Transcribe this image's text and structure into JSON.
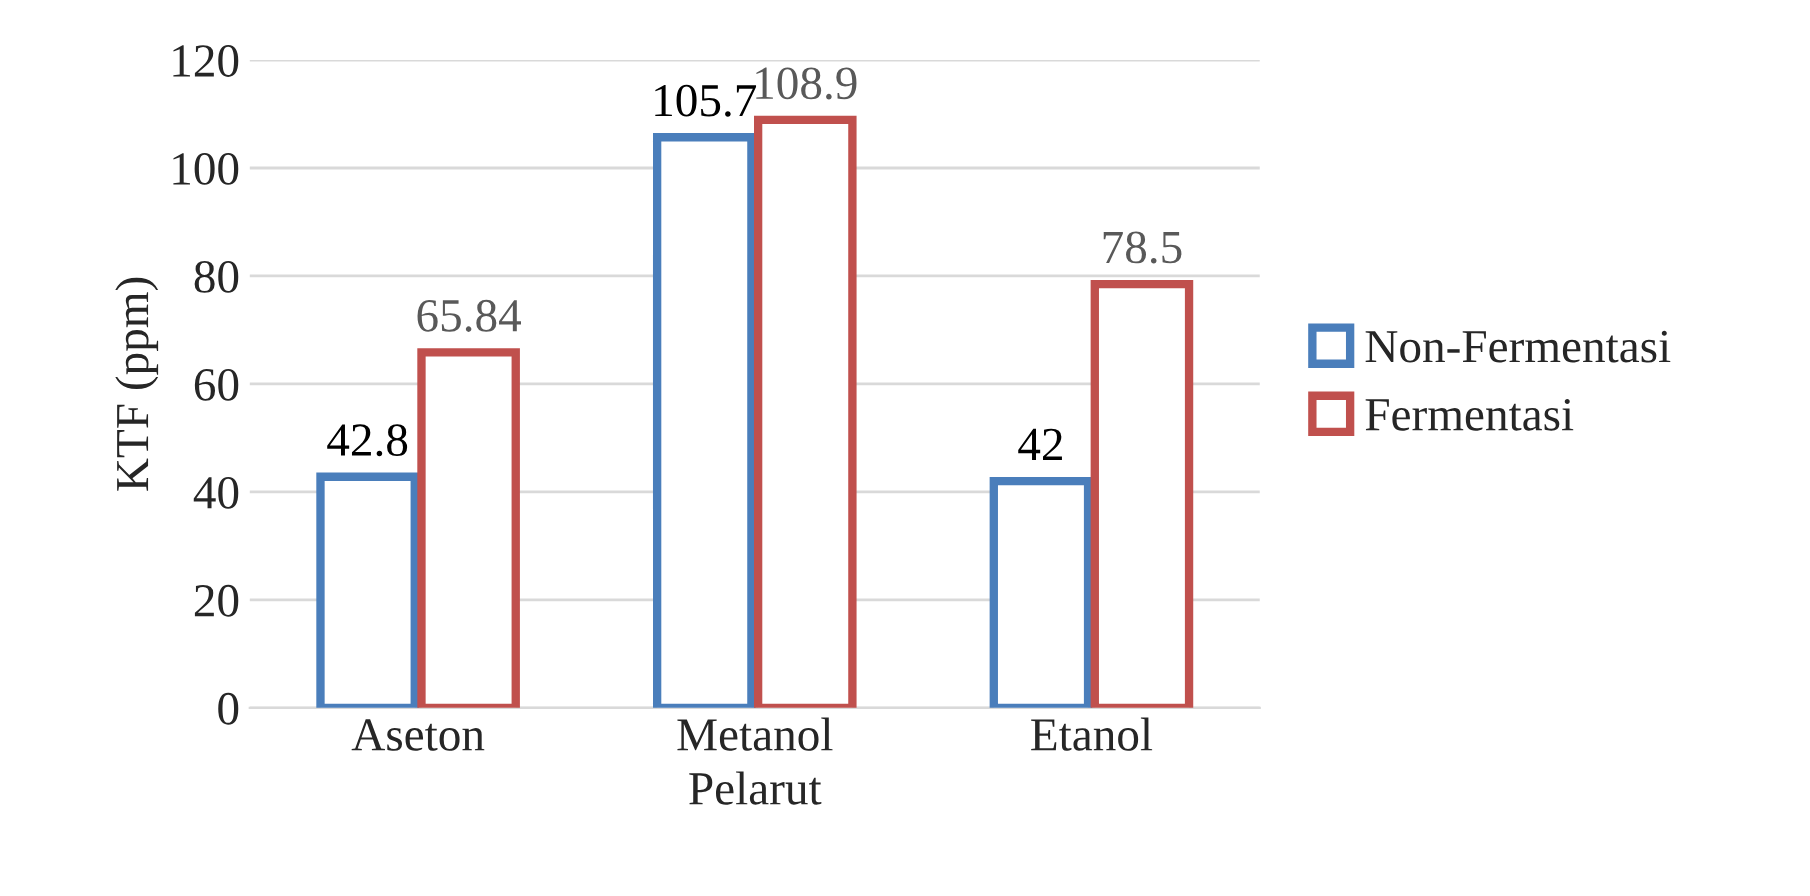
{
  "chart_data": {
    "type": "bar",
    "xlabel": "Pelarut",
    "ylabel": "KTF (ppm)",
    "categories": [
      "Aseton",
      "Metanol",
      "Etanol"
    ],
    "series": [
      {
        "name": "Non-Fermentasi",
        "color": "#4a7ebb",
        "values": [
          42.8,
          105.7,
          42
        ]
      },
      {
        "name": "Fermentasi",
        "color": "#c0504d",
        "values": [
          65.84,
          108.9,
          78.5
        ]
      }
    ],
    "ylim": [
      0,
      120
    ],
    "yticks": [
      0,
      20,
      40,
      60,
      80,
      100,
      120
    ],
    "grid": "y",
    "legend": "right",
    "data_labels": true
  }
}
